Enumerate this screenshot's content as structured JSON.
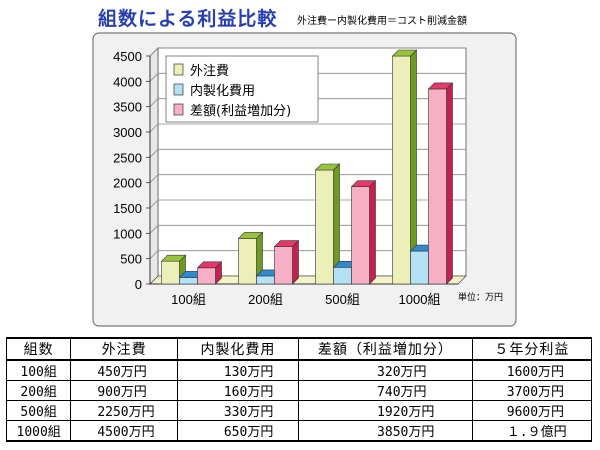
{
  "chart_data": {
    "type": "bar",
    "title": "組数による利益比較",
    "subtitle": "外注費ー内製化費用＝コスト削減金額",
    "categories": [
      "100組",
      "200組",
      "500組",
      "1000組"
    ],
    "series": [
      {
        "name": "外注費",
        "values": [
          450,
          900,
          2250,
          4500
        ],
        "color": "#ecf0b8",
        "top_color": "#98c43c",
        "side_color": "#6e9b1f"
      },
      {
        "name": "内製化費用",
        "values": [
          130,
          160,
          330,
          650
        ],
        "color": "#b2e2f4",
        "top_color": "#2e8ad0",
        "side_color": "#1c6aa8"
      },
      {
        "name": "差額(利益増加分)",
        "values": [
          320,
          740,
          1920,
          3850
        ],
        "color": "#f6afc5",
        "top_color": "#e6366a",
        "side_color": "#c61f52"
      }
    ],
    "ylim": [
      0,
      4500
    ],
    "yticks": [
      "0",
      "500",
      "1000",
      "1500",
      "2000",
      "2500",
      "3000",
      "3500",
      "4000",
      "4500"
    ],
    "unit_label": "単位：万円",
    "grid": true,
    "legend": "top-left"
  },
  "table": {
    "headers": [
      "組数",
      "外注費",
      "内製化費用",
      "差額（利益増加分）",
      "５年分利益"
    ],
    "rows": [
      [
        "100組",
        "450万円",
        "130万円",
        "320万円",
        "1600万円"
      ],
      [
        "200組",
        "900万円",
        "160万円",
        "740万円",
        "3700万円"
      ],
      [
        "500組",
        "2250万円",
        "330万円",
        "1920万円",
        "9600万円"
      ],
      [
        "1000組",
        "4500万円",
        "650万円",
        "3850万円",
        "１.９億円"
      ]
    ]
  }
}
